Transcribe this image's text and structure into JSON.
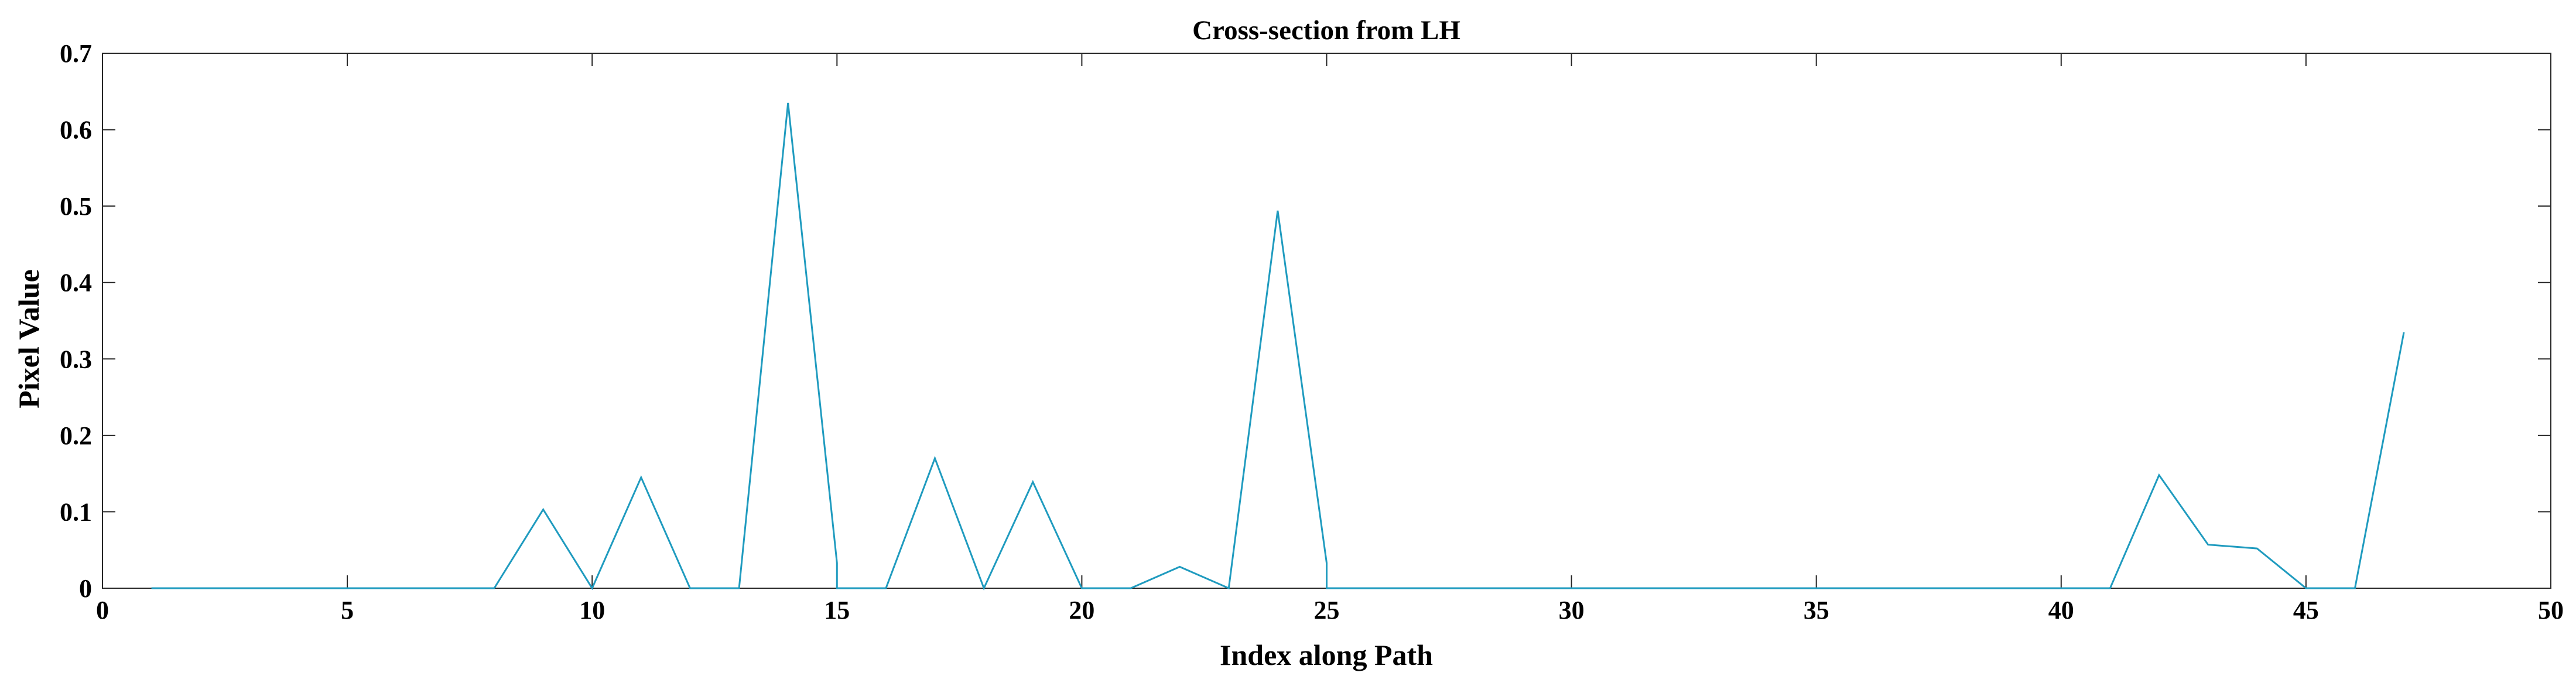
{
  "chart_data": {
    "type": "line",
    "title": "Cross-section from LH",
    "xlabel": "Index along Path",
    "ylabel": "Pixel Value",
    "xlim": [
      0,
      50
    ],
    "ylim": [
      0,
      0.7
    ],
    "xticks": [
      0,
      5,
      10,
      15,
      20,
      25,
      30,
      35,
      40,
      45,
      50
    ],
    "yticks": [
      0,
      0.1,
      0.2,
      0.3,
      0.4,
      0.5,
      0.6,
      0.7
    ],
    "xtick_labels": [
      "0",
      "5",
      "10",
      "15",
      "20",
      "25",
      "30",
      "35",
      "40",
      "45",
      "50"
    ],
    "ytick_labels": [
      "0",
      "0.1",
      "0.2",
      "0.3",
      "0.4",
      "0.5",
      "0.6",
      "0.7"
    ],
    "grid": false,
    "legend": "none",
    "box": true,
    "series": [
      {
        "color": "#1f9bbf",
        "x": [
          1,
          2,
          3,
          4,
          5,
          6,
          7,
          8,
          9,
          10,
          11,
          12,
          13,
          14,
          15,
          15,
          16,
          17,
          18,
          19,
          20,
          21,
          22,
          23,
          24,
          25,
          25,
          26,
          27,
          28,
          29,
          30,
          31,
          32,
          33,
          34,
          35,
          36,
          37,
          38,
          39,
          40,
          41,
          42,
          43,
          44,
          45,
          46,
          47
        ],
        "y": [
          0,
          0,
          0,
          0,
          0,
          0,
          0,
          0,
          0.103,
          0,
          0.145,
          0,
          0,
          0.635,
          0.033,
          0,
          0,
          0.17,
          0,
          0.139,
          0,
          0,
          0.028,
          0,
          0.494,
          0.033,
          0,
          0,
          0,
          0,
          0,
          0,
          0,
          0,
          0,
          0,
          0,
          0,
          0,
          0,
          0,
          0,
          0,
          0.148,
          0.057,
          0.052,
          0,
          0,
          0.335
        ]
      }
    ]
  }
}
